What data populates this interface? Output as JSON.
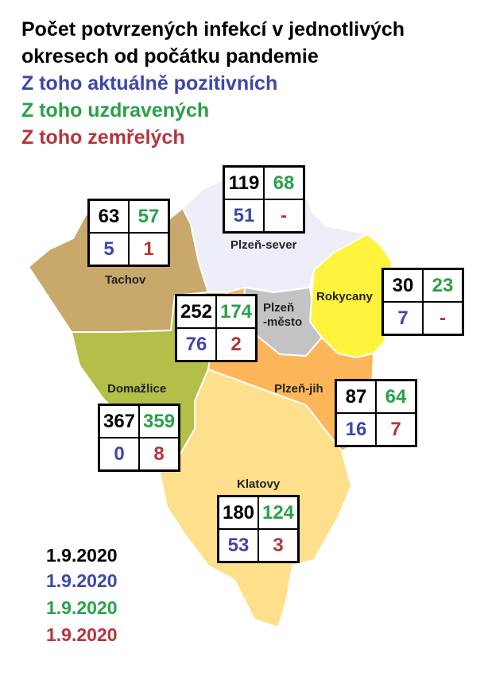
{
  "title": {
    "line1": "Počet potvrzených infekcí v jednotlivých",
    "line2": "okresech od počátku pandemie",
    "line3": "Z toho aktuálně pozitivních",
    "line4": "Z toho uzdravených",
    "line5": "Z toho zemřelých"
  },
  "colors": {
    "confirmed": "#000000",
    "active": "#3d47a8",
    "recovered": "#2aa04a",
    "deaths": "#b4353c"
  },
  "regions": [
    {
      "name": "Plzeň-sever",
      "fill": "#eeeef8",
      "stats": {
        "confirmed": "119",
        "recovered": "68",
        "active": "51",
        "deaths": "-"
      }
    },
    {
      "name": "Tachov",
      "fill": "#c9a86c",
      "stats": {
        "confirmed": "63",
        "recovered": "57",
        "active": "5",
        "deaths": "1"
      }
    },
    {
      "name": "Rokycany",
      "fill": "#fff33b",
      "stats": {
        "confirmed": "30",
        "recovered": "23",
        "active": "7",
        "deaths": "-"
      }
    },
    {
      "name": "Plzeň\n-město",
      "fill": "#c3c3c3",
      "stats": {
        "confirmed": "252",
        "recovered": "174",
        "active": "76",
        "deaths": "2"
      }
    },
    {
      "name": "Domažlice",
      "fill": "#b3bf49",
      "stats": {
        "confirmed": "367",
        "recovered": "359",
        "active": "0",
        "deaths": "8"
      }
    },
    {
      "name": "Plzeň-jih",
      "fill": "#fdb55a",
      "stats": {
        "confirmed": "87",
        "recovered": "64",
        "active": "16",
        "deaths": "7"
      }
    },
    {
      "name": "Klatovy",
      "fill": "#fddf8c",
      "stats": {
        "confirmed": "180",
        "recovered": "124",
        "active": "53",
        "deaths": "3"
      }
    }
  ],
  "dates": {
    "confirmed": "1.9.2020",
    "active": "1.9.2020",
    "recovered": "1.9.2020",
    "deaths": "1.9.2020"
  }
}
